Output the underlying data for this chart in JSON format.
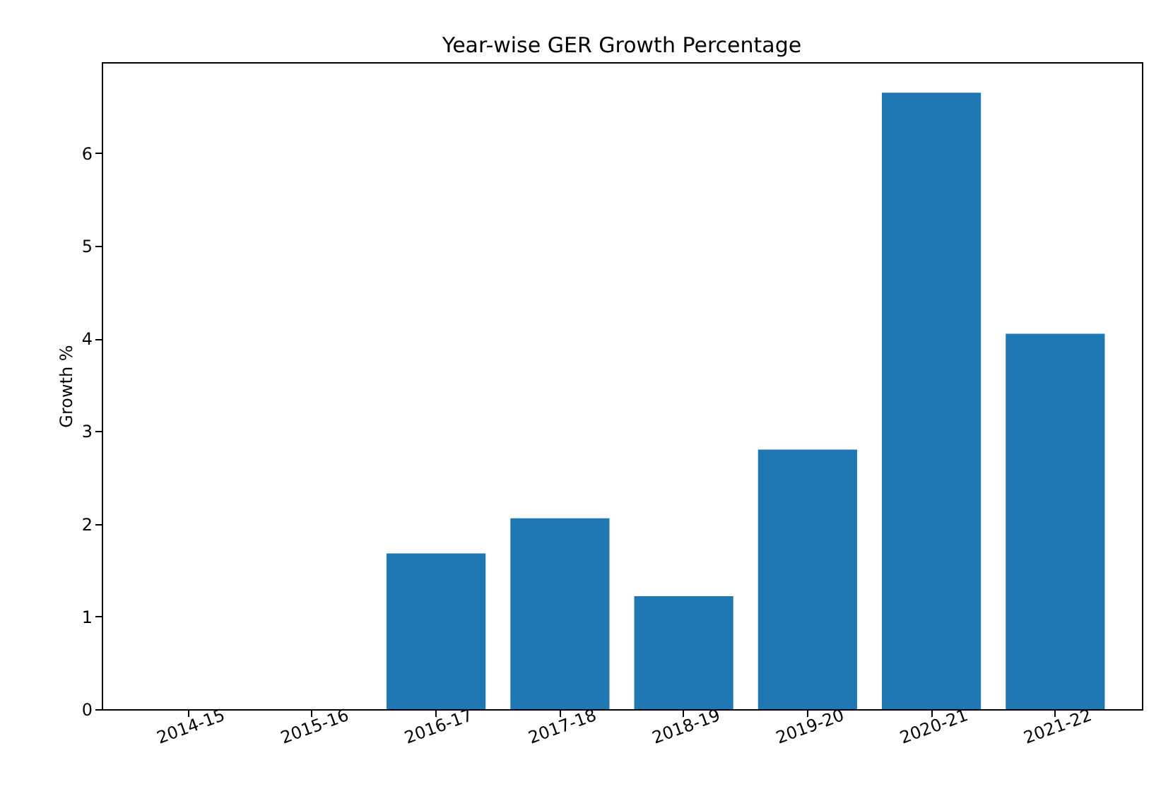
{
  "chart_data": {
    "type": "bar",
    "title": "Year-wise GER Growth Percentage",
    "ylabel": "Growth %",
    "categories": [
      "2014-15",
      "2015-16",
      "2016-17",
      "2017-18",
      "2018-19",
      "2019-20",
      "2020-21",
      "2021-22"
    ],
    "values": [
      0,
      0,
      1.68,
      2.06,
      1.22,
      2.8,
      6.65,
      4.05
    ],
    "color": "#1f77b4",
    "ylim": [
      0,
      6.98
    ],
    "yticks": [
      0,
      1,
      2,
      3,
      4,
      5,
      6
    ],
    "grid": false
  }
}
